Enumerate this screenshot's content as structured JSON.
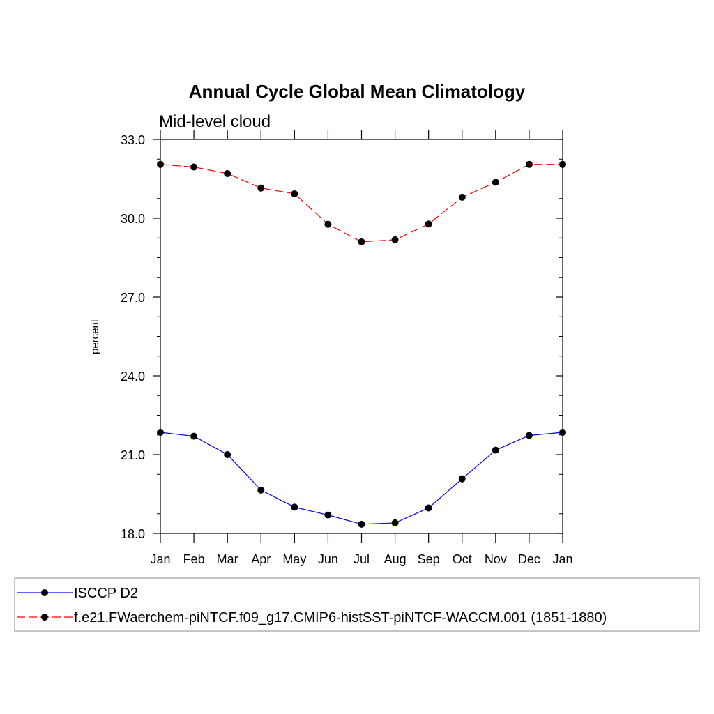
{
  "chart_data": {
    "type": "line",
    "title": "Annual Cycle Global Mean Climatology",
    "subtitle": "Mid-level cloud",
    "ylabel": "percent",
    "xlabel": "",
    "ylim": [
      18.0,
      33.0
    ],
    "y_ticks": [
      "18.0",
      "21.0",
      "24.0",
      "27.0",
      "30.0",
      "33.0"
    ],
    "categories": [
      "Jan",
      "Feb",
      "Mar",
      "Apr",
      "May",
      "Jun",
      "Jul",
      "Aug",
      "Sep",
      "Oct",
      "Nov",
      "Dec",
      "Jan"
    ],
    "grid": false,
    "legend_position": "bottom",
    "series": [
      {
        "name": "ISCCP D2",
        "color": "#0000ff",
        "line_style": "solid",
        "marker": "filled-circle",
        "values": [
          21.85,
          21.7,
          21.0,
          19.65,
          19.0,
          18.7,
          18.35,
          18.4,
          18.97,
          20.08,
          21.17,
          21.73,
          21.85
        ]
      },
      {
        "name": "f.e21.FWaerchem-piNTCF.f09_g17.CMIP6-histSST-piNTCF-WACCM.001 (1851-1880)",
        "color": "#ff0000",
        "line_style": "dashed",
        "marker": "filled-circle",
        "values": [
          32.05,
          31.95,
          31.7,
          31.15,
          30.93,
          29.77,
          29.1,
          29.18,
          29.78,
          30.8,
          31.37,
          32.05,
          32.05
        ]
      }
    ]
  }
}
